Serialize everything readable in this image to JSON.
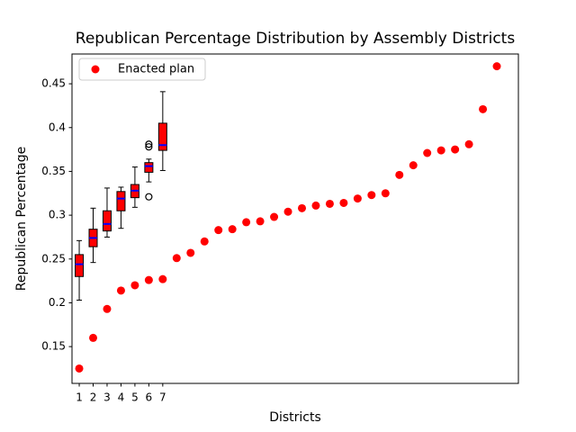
{
  "chart_data": {
    "type": "box_scatter",
    "title": "Republican Percentage Distribution by Assembly Districts",
    "x_label": "Districts",
    "y_label": "Republican Percentage",
    "xlim": [
      0.48,
      32.55
    ],
    "xticks": [
      1,
      2,
      3,
      4,
      5,
      6,
      7
    ],
    "ylim": [
      0.108,
      0.484
    ],
    "yticks": [
      0.15,
      0.2,
      0.25,
      0.3,
      0.35,
      0.4,
      0.45
    ],
    "legend": "upper left",
    "box_style": {
      "fill": "red",
      "median_color": "blue",
      "line_color": "black"
    },
    "boxes": [
      {
        "x": 1,
        "whislo": 0.203,
        "q1": 0.23,
        "med": 0.244,
        "q3": 0.255,
        "whishi": 0.271,
        "fliers": []
      },
      {
        "x": 2,
        "whislo": 0.246,
        "q1": 0.264,
        "med": 0.274,
        "q3": 0.284,
        "whishi": 0.308,
        "fliers": []
      },
      {
        "x": 3,
        "whislo": 0.275,
        "q1": 0.282,
        "med": 0.29,
        "q3": 0.305,
        "whishi": 0.331,
        "fliers": []
      },
      {
        "x": 4,
        "whislo": 0.285,
        "q1": 0.305,
        "med": 0.319,
        "q3": 0.327,
        "whishi": 0.332,
        "fliers": []
      },
      {
        "x": 5,
        "whislo": 0.309,
        "q1": 0.32,
        "med": 0.328,
        "q3": 0.335,
        "whishi": 0.355,
        "fliers": []
      },
      {
        "x": 6,
        "whislo": 0.338,
        "q1": 0.349,
        "med": 0.356,
        "q3": 0.36,
        "whishi": 0.364,
        "fliers": [
          0.381,
          0.378,
          0.321
        ]
      },
      {
        "x": 7,
        "whislo": 0.351,
        "q1": 0.374,
        "med": 0.38,
        "q3": 0.405,
        "whishi": 0.441,
        "fliers": []
      }
    ],
    "series": [
      {
        "name": "Enacted plan",
        "color": "red",
        "x": [
          1,
          2,
          3,
          4,
          5,
          6,
          7,
          8,
          9,
          10,
          11,
          12,
          13,
          14,
          15,
          16,
          17,
          18,
          19,
          20,
          21,
          22,
          23,
          24,
          25,
          26,
          27,
          28,
          29,
          30,
          31
        ],
        "values": [
          0.125,
          0.16,
          0.193,
          0.214,
          0.22,
          0.226,
          0.227,
          0.251,
          0.257,
          0.27,
          0.283,
          0.284,
          0.292,
          0.293,
          0.298,
          0.304,
          0.308,
          0.311,
          0.313,
          0.314,
          0.319,
          0.323,
          0.325,
          0.346,
          0.357,
          0.371,
          0.374,
          0.375,
          0.381,
          0.421,
          0.47
        ]
      }
    ]
  }
}
